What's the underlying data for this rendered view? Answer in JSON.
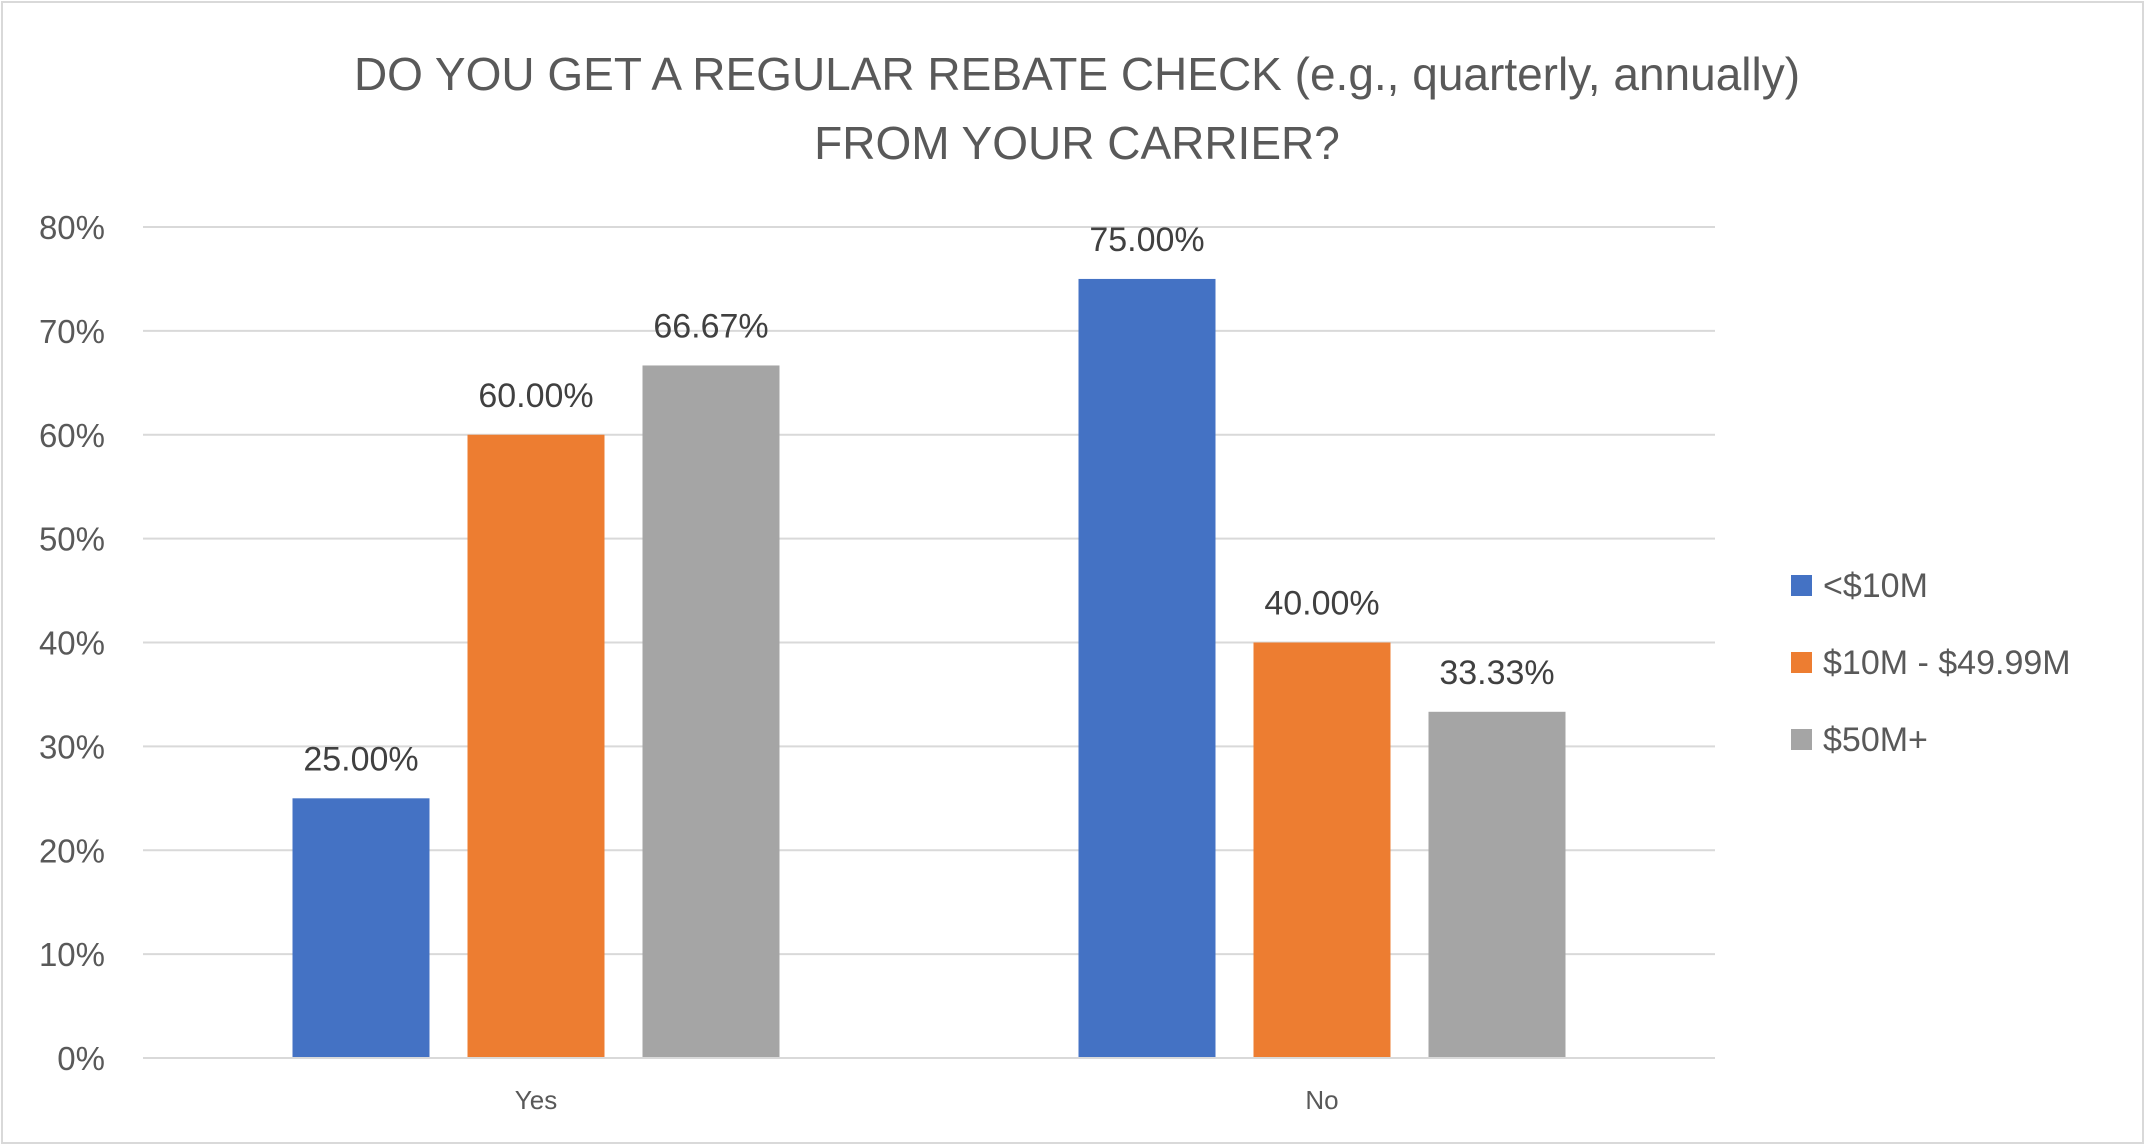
{
  "chart_data": {
    "type": "bar",
    "title": "DO YOU GET A REGULAR REBATE CHECK (e.g., quarterly, annually)",
    "subtitle": "FROM YOUR CARRIER?",
    "xlabel": "",
    "ylabel": "",
    "categories": [
      "Yes",
      "No"
    ],
    "series": [
      {
        "name": "<$10M",
        "values": [
          25.0,
          75.0
        ],
        "color": "#4472c4"
      },
      {
        "name": "$10M - $49.99M",
        "values": [
          60.0,
          40.0
        ],
        "color": "#ed7d31"
      },
      {
        "name": "$50M+",
        "values": [
          66.67,
          33.33
        ],
        "color": "#a5a5a5"
      }
    ],
    "data_labels": [
      [
        "25.00%",
        "75.00%"
      ],
      [
        "60.00%",
        "40.00%"
      ],
      [
        "66.67%",
        "33.33%"
      ]
    ],
    "y_ticks": [
      "0%",
      "10%",
      "20%",
      "30%",
      "40%",
      "50%",
      "60%",
      "70%",
      "80%"
    ],
    "ylim": [
      0,
      80
    ],
    "grid": true,
    "legend_position": "right",
    "colors": {
      "gridline": "#d9d9d9",
      "axis_line": "#d9d9d9",
      "border": "#d9d9d9"
    }
  }
}
